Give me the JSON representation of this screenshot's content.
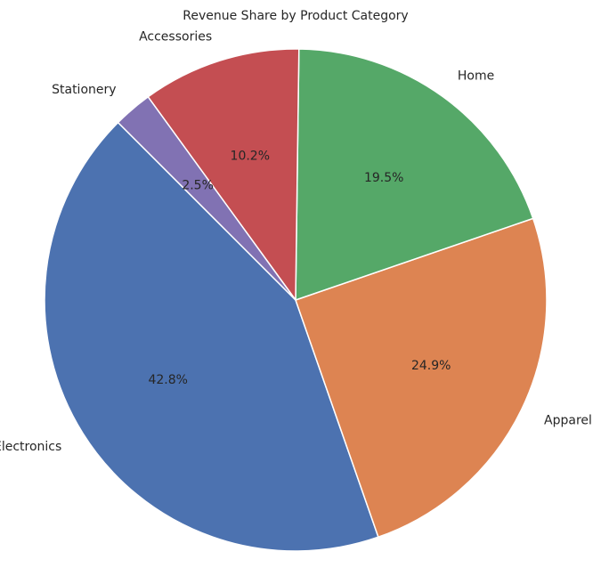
{
  "chart_data": {
    "type": "pie",
    "title": "Revenue Share by Product Category",
    "start_angle_deg": 135,
    "direction": "counterclockwise",
    "slices": [
      {
        "label": "Electronics",
        "value": 42.8,
        "pct_label": "42.8%",
        "color": "#4c72b0"
      },
      {
        "label": "Apparel",
        "value": 24.9,
        "pct_label": "24.9%",
        "color": "#dd8452"
      },
      {
        "label": "Home",
        "value": 19.5,
        "pct_label": "19.5%",
        "color": "#55a868"
      },
      {
        "label": "Accessories",
        "value": 10.2,
        "pct_label": "10.2%",
        "color": "#c44e52"
      },
      {
        "label": "Stationery",
        "value": 2.5,
        "pct_label": "2.5%",
        "color": "#8172b3"
      }
    ]
  }
}
